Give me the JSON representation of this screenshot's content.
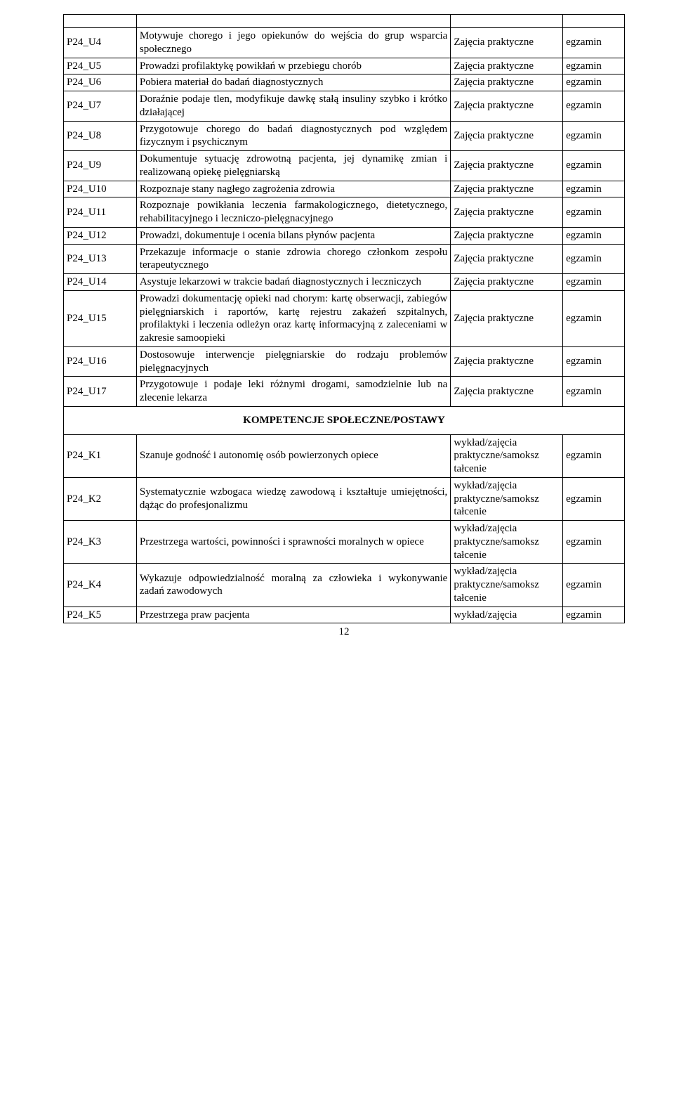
{
  "section_header": "KOMPETENCJE SPOŁECZNE/POSTAWY",
  "page_number": "12",
  "col3_default": "Zajęcia praktyczne",
  "col4_default": "egzamin",
  "rows_u": [
    {
      "code": "P24_U4",
      "desc": "Motywuje chorego i jego opiekunów do wejścia do grup wsparcia społecznego"
    },
    {
      "code": "P24_U5",
      "desc": "Prowadzi profilaktykę powikłań w przebiegu chorób"
    },
    {
      "code": "P24_U6",
      "desc": "Pobiera materiał do badań diagnostycznych"
    },
    {
      "code": "P24_U7",
      "desc": "Doraźnie podaje tlen, modyfikuje dawkę stałą insuliny szybko i krótko działającej"
    },
    {
      "code": "P24_U8",
      "desc": "Przygotowuje chorego do badań diagnostycznych pod względem fizycznym i psychicznym"
    },
    {
      "code": "P24_U9",
      "desc": "Dokumentuje sytuację zdrowotną pacjenta, jej dynamikę zmian i realizowaną opiekę pielęgniarską"
    },
    {
      "code": "P24_U10",
      "desc": "Rozpoznaje stany nagłego zagrożenia zdrowia"
    },
    {
      "code": "P24_U11",
      "desc": "Rozpoznaje powikłania leczenia farmakologicznego, dietetycznego, rehabilitacyjnego i leczniczo-pielęgnacyjnego"
    },
    {
      "code": "P24_U12",
      "desc": "Prowadzi, dokumentuje i ocenia bilans płynów pacjenta"
    },
    {
      "code": "P24_U13",
      "desc": "Przekazuje informacje o stanie zdrowia chorego członkom zespołu terapeutycznego"
    },
    {
      "code": "P24_U14",
      "desc": "Asystuje lekarzowi w trakcie badań diagnostycznych i leczniczych"
    },
    {
      "code": "P24_U15",
      "desc": "Prowadzi dokumentację opieki nad chorym: kartę obserwacji, zabiegów pielęgniarskich i raportów, kartę rejestru zakażeń szpitalnych, profilaktyki i leczenia odleżyn oraz kartę informacyjną z zaleceniami w zakresie samoopieki"
    },
    {
      "code": "P24_U16",
      "desc": "Dostosowuje interwencje pielęgniarskie do rodzaju problemów pielęgnacyjnych"
    },
    {
      "code": "P24_U17",
      "desc": "Przygotowuje i podaje leki różnymi drogami, samodzielnie lub na zlecenie lekarza"
    }
  ],
  "rows_k": [
    {
      "code": "P24_K1",
      "desc": "Szanuje godność i autonomię osób powierzonych opiece",
      "c3": "wykład/zajęcia praktyczne/samoksz tałcenie"
    },
    {
      "code": "P24_K2",
      "desc": "Systematycznie wzbogaca wiedzę zawodową i kształtuje umiejętności, dążąc do profesjonalizmu",
      "c3": "wykład/zajęcia praktyczne/samoksz tałcenie"
    },
    {
      "code": "P24_K3",
      "desc": "Przestrzega wartości, powinności i sprawności moralnych w opiece",
      "c3": "wykład/zajęcia praktyczne/samoksz tałcenie"
    },
    {
      "code": "P24_K4",
      "desc": "Wykazuje odpowiedzialność moralną za człowieka i wykonywanie zadań zawodowych",
      "c3": "wykład/zajęcia praktyczne/samoksz tałcenie"
    },
    {
      "code": "P24_K5",
      "desc": "Przestrzega praw pacjenta",
      "c3": "wykład/zajęcia"
    }
  ]
}
